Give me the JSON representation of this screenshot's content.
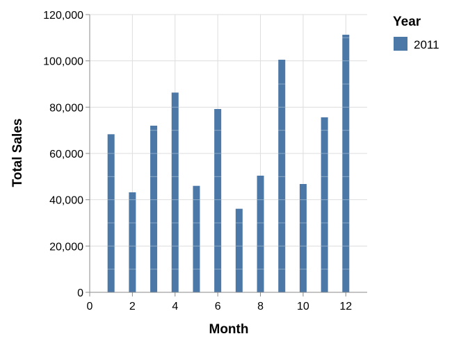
{
  "chart_data": {
    "type": "bar",
    "x": [
      1,
      2,
      3,
      4,
      5,
      6,
      7,
      8,
      9,
      10,
      11,
      12
    ],
    "series": [
      {
        "name": "2011",
        "values": [
          68300,
          43200,
          72000,
          86300,
          46000,
          79200,
          36100,
          50400,
          100500,
          46800,
          75600,
          111300
        ]
      }
    ],
    "xlabel": "Month",
    "ylabel": "Total Sales",
    "xlim": [
      0,
      13
    ],
    "ylim": [
      0,
      120000
    ],
    "x_ticks": [
      0,
      2,
      4,
      6,
      8,
      10,
      12
    ],
    "y_ticks": [
      0,
      20000,
      40000,
      60000,
      80000,
      100000,
      120000
    ],
    "y_tick_labels": [
      "0",
      "20,000",
      "40,000",
      "60,000",
      "80,000",
      "100,000",
      "120,000"
    ],
    "grid": true,
    "legend": {
      "title": "Year",
      "placement": "right"
    },
    "colors": {
      "series": "#4c78a8",
      "grid": "#dddddd",
      "axis": "#888888",
      "segment_line": "#ffffff"
    }
  }
}
